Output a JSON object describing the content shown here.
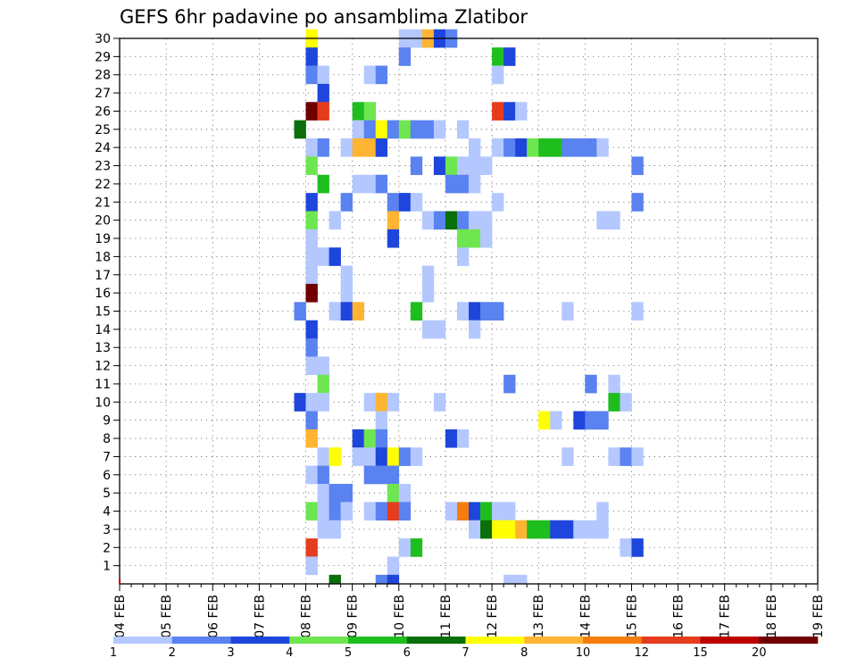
{
  "chart_data": {
    "type": "heatmap",
    "title": "GEFS 6hr padavine po ansamblima Zlatibor",
    "xlabel": "",
    "ylabel": "",
    "x_ticks": [
      "04 FEB",
      "05 FEB",
      "06 FEB",
      "07 FEB",
      "08 FEB",
      "09 FEB",
      "10 FEB",
      "11 FEB",
      "12 FEB",
      "13 FEB",
      "14 FEB",
      "15 FEB",
      "16 FEB",
      "17 FEB",
      "18 FEB",
      "19 FEB"
    ],
    "y_ticks": [
      1,
      2,
      3,
      4,
      5,
      6,
      7,
      8,
      9,
      10,
      11,
      12,
      13,
      14,
      15,
      16,
      17,
      18,
      19,
      20,
      21,
      22,
      23,
      24,
      25,
      26,
      27,
      28,
      29,
      30
    ],
    "ylim": [
      0,
      30
    ],
    "time_step_hours": 6,
    "grid": true,
    "colorbar": {
      "labels": [
        "1",
        "2",
        "3",
        "4",
        "5",
        "6",
        "7",
        "8",
        "10",
        "12",
        "15",
        "20"
      ],
      "colors": [
        "#b4c8ff",
        "#5a82f0",
        "#1e46dc",
        "#6ee650",
        "#1ebe1e",
        "#0a6e0a",
        "#ffff00",
        "#ffb432",
        "#f57d0f",
        "#e63c1e",
        "#be0000",
        "#700000"
      ]
    },
    "cells_note": "each cell: [step_index (6h steps from 04 FEB 00z), member, colorbar_class_index]",
    "cells": [
      [
        16,
        30,
        6
      ],
      [
        24,
        30,
        0
      ],
      [
        25,
        30,
        0
      ],
      [
        26,
        30,
        7
      ],
      [
        27,
        30,
        2
      ],
      [
        28,
        30,
        1
      ],
      [
        16,
        29,
        2
      ],
      [
        24,
        29,
        1
      ],
      [
        32,
        29,
        4
      ],
      [
        33,
        29,
        2
      ],
      [
        16,
        28,
        1
      ],
      [
        17,
        28,
        0
      ],
      [
        21,
        28,
        0
      ],
      [
        22,
        28,
        1
      ],
      [
        32,
        28,
        0
      ],
      [
        17,
        27,
        2
      ],
      [
        16,
        26,
        11
      ],
      [
        17,
        26,
        9
      ],
      [
        20,
        26,
        4
      ],
      [
        21,
        26,
        3
      ],
      [
        32,
        26,
        9
      ],
      [
        33,
        26,
        2
      ],
      [
        34,
        26,
        0
      ],
      [
        15,
        25,
        5
      ],
      [
        20,
        25,
        0
      ],
      [
        21,
        25,
        1
      ],
      [
        22,
        25,
        6
      ],
      [
        23,
        25,
        1
      ],
      [
        24,
        25,
        3
      ],
      [
        25,
        25,
        1
      ],
      [
        26,
        25,
        1
      ],
      [
        27,
        25,
        0
      ],
      [
        29,
        25,
        0
      ],
      [
        16,
        24,
        0
      ],
      [
        17,
        24,
        1
      ],
      [
        19,
        24,
        0
      ],
      [
        20,
        24,
        7
      ],
      [
        21,
        24,
        7
      ],
      [
        22,
        24,
        2
      ],
      [
        30,
        24,
        0
      ],
      [
        32,
        24,
        0
      ],
      [
        33,
        24,
        1
      ],
      [
        34,
        24,
        2
      ],
      [
        35,
        24,
        3
      ],
      [
        36,
        24,
        4
      ],
      [
        37,
        24,
        4
      ],
      [
        38,
        24,
        1
      ],
      [
        39,
        24,
        1
      ],
      [
        40,
        24,
        1
      ],
      [
        41,
        24,
        0
      ],
      [
        16,
        23,
        3
      ],
      [
        25,
        23,
        1
      ],
      [
        27,
        23,
        2
      ],
      [
        28,
        23,
        3
      ],
      [
        29,
        23,
        0
      ],
      [
        30,
        23,
        0
      ],
      [
        31,
        23,
        0
      ],
      [
        44,
        23,
        1
      ],
      [
        17,
        22,
        4
      ],
      [
        20,
        22,
        0
      ],
      [
        21,
        22,
        0
      ],
      [
        22,
        22,
        1
      ],
      [
        28,
        22,
        1
      ],
      [
        29,
        22,
        1
      ],
      [
        30,
        22,
        0
      ],
      [
        16,
        21,
        2
      ],
      [
        19,
        21,
        1
      ],
      [
        23,
        21,
        1
      ],
      [
        24,
        21,
        2
      ],
      [
        25,
        21,
        0
      ],
      [
        32,
        21,
        0
      ],
      [
        44,
        21,
        1
      ],
      [
        16,
        20,
        3
      ],
      [
        18,
        20,
        0
      ],
      [
        23,
        20,
        7
      ],
      [
        26,
        20,
        0
      ],
      [
        27,
        20,
        1
      ],
      [
        28,
        20,
        5
      ],
      [
        29,
        20,
        1
      ],
      [
        30,
        20,
        0
      ],
      [
        31,
        20,
        0
      ],
      [
        41,
        20,
        0
      ],
      [
        42,
        20,
        0
      ],
      [
        16,
        19,
        0
      ],
      [
        23,
        19,
        2
      ],
      [
        29,
        19,
        3
      ],
      [
        30,
        19,
        3
      ],
      [
        31,
        19,
        0
      ],
      [
        17,
        18,
        0
      ],
      [
        16,
        18,
        0
      ],
      [
        18,
        18,
        2
      ],
      [
        29,
        18,
        0
      ],
      [
        16,
        17,
        0
      ],
      [
        19,
        17,
        0
      ],
      [
        26,
        17,
        0
      ],
      [
        16,
        16,
        11
      ],
      [
        19,
        16,
        0
      ],
      [
        26,
        16,
        0
      ],
      [
        15,
        15,
        1
      ],
      [
        18,
        15,
        0
      ],
      [
        19,
        15,
        2
      ],
      [
        20,
        15,
        7
      ],
      [
        25,
        15,
        4
      ],
      [
        29,
        15,
        0
      ],
      [
        30,
        15,
        2
      ],
      [
        31,
        15,
        1
      ],
      [
        32,
        15,
        1
      ],
      [
        38,
        15,
        0
      ],
      [
        44,
        15,
        0
      ],
      [
        16,
        14,
        2
      ],
      [
        26,
        14,
        0
      ],
      [
        27,
        14,
        0
      ],
      [
        30,
        14,
        0
      ],
      [
        16,
        13,
        1
      ],
      [
        16,
        12,
        0
      ],
      [
        17,
        12,
        0
      ],
      [
        17,
        11,
        3
      ],
      [
        33,
        11,
        1
      ],
      [
        40,
        11,
        1
      ],
      [
        42,
        11,
        0
      ],
      [
        15,
        10,
        2
      ],
      [
        16,
        10,
        0
      ],
      [
        17,
        10,
        0
      ],
      [
        21,
        10,
        0
      ],
      [
        22,
        10,
        7
      ],
      [
        23,
        10,
        0
      ],
      [
        27,
        10,
        0
      ],
      [
        42,
        10,
        4
      ],
      [
        43,
        10,
        0
      ],
      [
        16,
        9,
        1
      ],
      [
        22,
        9,
        0
      ],
      [
        36,
        9,
        6
      ],
      [
        37,
        9,
        0
      ],
      [
        39,
        9,
        2
      ],
      [
        40,
        9,
        1
      ],
      [
        41,
        9,
        1
      ],
      [
        16,
        8,
        7
      ],
      [
        20,
        8,
        2
      ],
      [
        21,
        8,
        3
      ],
      [
        22,
        8,
        1
      ],
      [
        28,
        8,
        2
      ],
      [
        29,
        8,
        0
      ],
      [
        17,
        7,
        0
      ],
      [
        18,
        7,
        6
      ],
      [
        20,
        7,
        0
      ],
      [
        21,
        7,
        0
      ],
      [
        22,
        7,
        2
      ],
      [
        23,
        7,
        6
      ],
      [
        24,
        7,
        1
      ],
      [
        25,
        7,
        0
      ],
      [
        38,
        7,
        0
      ],
      [
        42,
        7,
        0
      ],
      [
        43,
        7,
        1
      ],
      [
        44,
        7,
        0
      ],
      [
        16,
        6,
        0
      ],
      [
        17,
        6,
        1
      ],
      [
        21,
        6,
        1
      ],
      [
        22,
        6,
        1
      ],
      [
        23,
        6,
        1
      ],
      [
        17,
        5,
        0
      ],
      [
        18,
        5,
        1
      ],
      [
        19,
        5,
        1
      ],
      [
        23,
        5,
        3
      ],
      [
        24,
        5,
        0
      ],
      [
        16,
        4,
        3
      ],
      [
        17,
        4,
        0
      ],
      [
        18,
        4,
        1
      ],
      [
        19,
        4,
        0
      ],
      [
        21,
        4,
        0
      ],
      [
        22,
        4,
        1
      ],
      [
        23,
        4,
        9
      ],
      [
        24,
        4,
        1
      ],
      [
        28,
        4,
        0
      ],
      [
        29,
        4,
        8
      ],
      [
        30,
        4,
        2
      ],
      [
        31,
        4,
        4
      ],
      [
        32,
        4,
        0
      ],
      [
        33,
        4,
        0
      ],
      [
        41,
        4,
        0
      ],
      [
        17,
        3,
        0
      ],
      [
        18,
        3,
        0
      ],
      [
        30,
        3,
        0
      ],
      [
        31,
        3,
        5
      ],
      [
        32,
        3,
        6
      ],
      [
        33,
        3,
        6
      ],
      [
        34,
        3,
        7
      ],
      [
        35,
        3,
        4
      ],
      [
        36,
        3,
        4
      ],
      [
        37,
        3,
        2
      ],
      [
        38,
        3,
        2
      ],
      [
        39,
        3,
        0
      ],
      [
        40,
        3,
        0
      ],
      [
        41,
        3,
        0
      ],
      [
        16,
        2,
        9
      ],
      [
        24,
        2,
        0
      ],
      [
        25,
        2,
        4
      ],
      [
        43,
        2,
        0
      ],
      [
        44,
        2,
        2
      ],
      [
        16,
        1,
        0
      ],
      [
        23,
        1,
        0
      ],
      [
        18,
        0,
        5
      ],
      [
        22,
        0,
        1
      ],
      [
        23,
        0,
        2
      ],
      [
        33,
        0,
        0
      ],
      [
        34,
        0,
        0
      ]
    ]
  }
}
